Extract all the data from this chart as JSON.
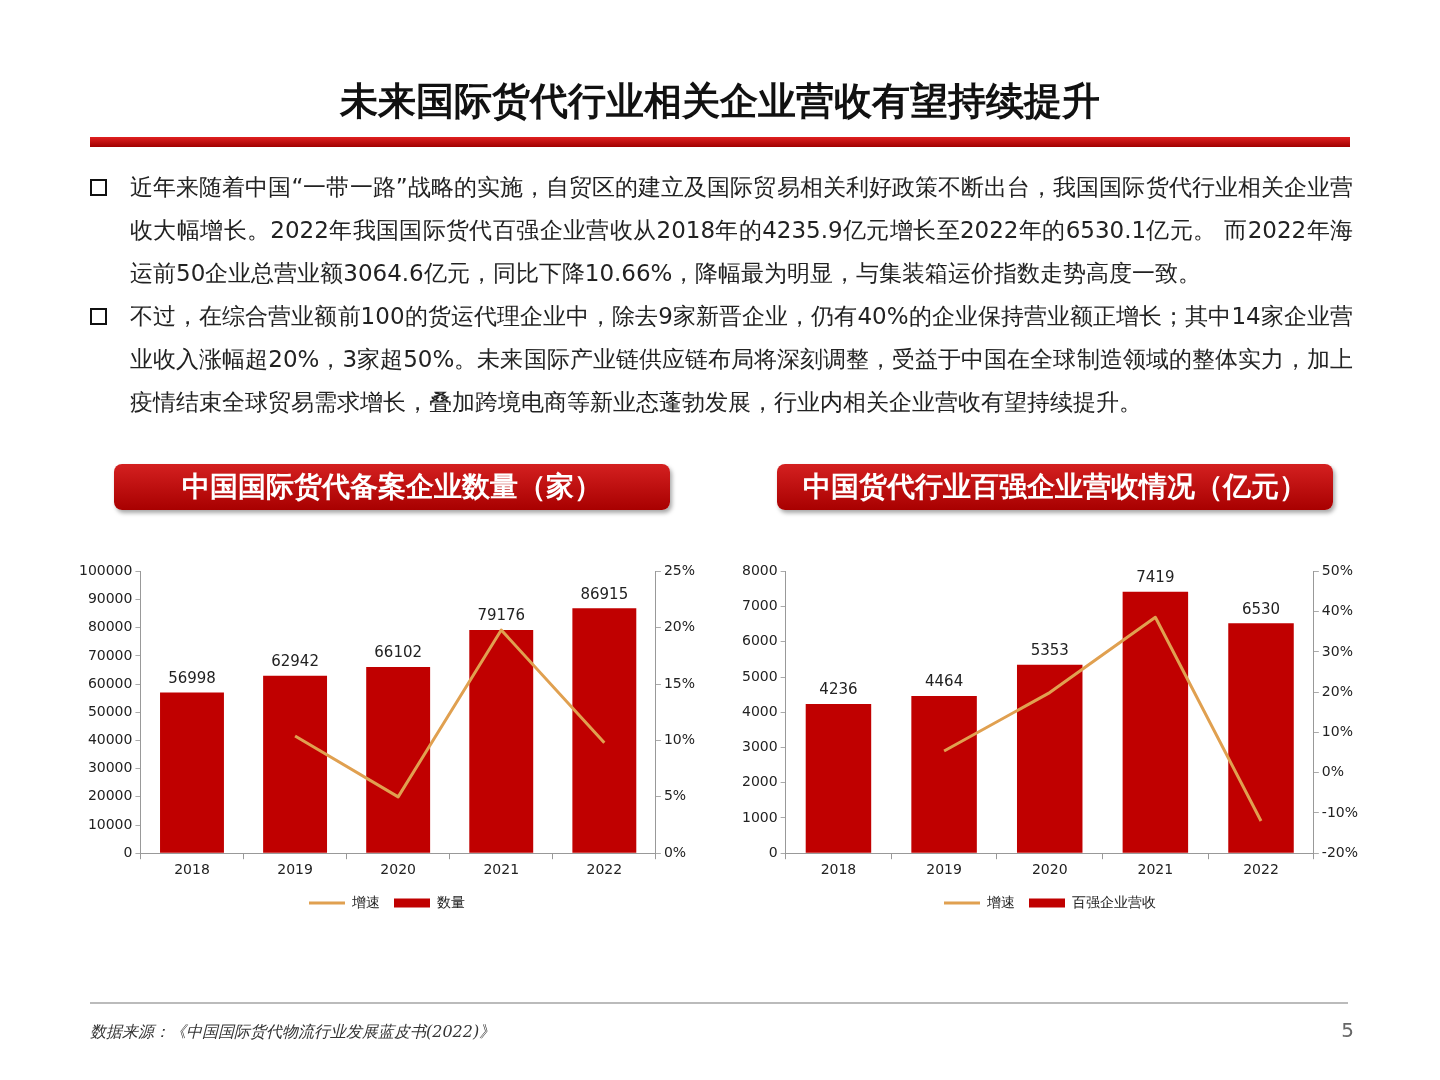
{
  "chart_data": [
    {
      "type": "other",
      "title": "未来国际货代行业相关企业营收有望持续提升",
      "annotations": [
        "近年来随着中国“一带一路”战略的实施，自贸区的建立及国际贸易相关利好政策不断出台，我国国际货代行业相关企业营收大幅增长。2022年我国国际货代百强企业营收从2018年的4235.9亿元增长至2022年的6530.1亿元。 而2022年海运前50企业总营业额3064.6亿元，同比下降10.66%，降幅最为明显，与集装箱运价指数走势高度一致。",
        "不过，在综合营业额前100的货运代理企业中，除去9家新晋企业，仍有40%的企业保持营业额正增长；其中14家企业营业收入涨幅超20%，3家超50%。未来国际产业链供应链布局将深刻调整，受益于中国在全球制造领域的整体实力，加上疫情结束全球贸易需求增长，叠加跨境电商等新业态蓬勃发展，行业内相关企业营收有望持续提升。",
        "数据来源：《中国国际货代物流行业发展蓝皮书(2022)》",
        "5"
      ]
    },
    {
      "type": "bar",
      "title": "中国国际货代备案企业数量（家）",
      "categories": [
        "2018",
        "2019",
        "2020",
        "2021",
        "2022"
      ],
      "legend": "bottom",
      "ylim": [
        0,
        100000
      ],
      "yticks": [
        0,
        10000,
        20000,
        30000,
        40000,
        50000,
        60000,
        70000,
        80000,
        90000,
        100000
      ],
      "y2lim": [
        0,
        25
      ],
      "y2ticks": [
        {
          "value": 0,
          "label": "0%"
        },
        {
          "value": 5,
          "label": "5%"
        },
        {
          "value": 10,
          "label": "10%"
        },
        {
          "value": 15,
          "label": "15%"
        },
        {
          "value": 20,
          "label": "20%"
        },
        {
          "value": 25,
          "label": "25%"
        }
      ],
      "series": [
        {
          "name": "数量",
          "type": "bar",
          "color": "#c00000",
          "values": [
            56998,
            62942,
            66102,
            79176,
            86915
          ],
          "value_labels": [
            "56998",
            "62942",
            "66102",
            "79176",
            "86915"
          ]
        },
        {
          "name": "增速",
          "type": "line",
          "axis": "y2",
          "color": "#e0a050",
          "values": [
            null,
            10.4,
            5.0,
            19.8,
            9.8
          ]
        }
      ]
    },
    {
      "type": "bar",
      "title": "中国货代行业百强企业营收情况（亿元）",
      "categories": [
        "2018",
        "2019",
        "2020",
        "2021",
        "2022"
      ],
      "legend": "bottom",
      "ylim": [
        0,
        8000
      ],
      "yticks": [
        0,
        1000,
        2000,
        3000,
        4000,
        5000,
        6000,
        7000,
        8000
      ],
      "y2lim": [
        -20,
        50
      ],
      "y2ticks": [
        {
          "value": -20,
          "label": "-20%"
        },
        {
          "value": -10,
          "label": "-10%"
        },
        {
          "value": 0,
          "label": "0%"
        },
        {
          "value": 10,
          "label": "10%"
        },
        {
          "value": 20,
          "label": "20%"
        },
        {
          "value": 30,
          "label": "30%"
        },
        {
          "value": 40,
          "label": "40%"
        },
        {
          "value": 50,
          "label": "50%"
        }
      ],
      "series": [
        {
          "name": "百强企业营收",
          "type": "bar",
          "color": "#c00000",
          "values": [
            4236,
            4464,
            5353,
            7419,
            6530
          ],
          "value_labels": [
            "4236",
            "4464",
            "5353",
            "7419",
            "6530"
          ]
        },
        {
          "name": "增速",
          "type": "line",
          "axis": "y2",
          "color": "#e0a050",
          "values": [
            null,
            5.4,
            19.9,
            38.6,
            -12.0
          ]
        }
      ]
    }
  ]
}
